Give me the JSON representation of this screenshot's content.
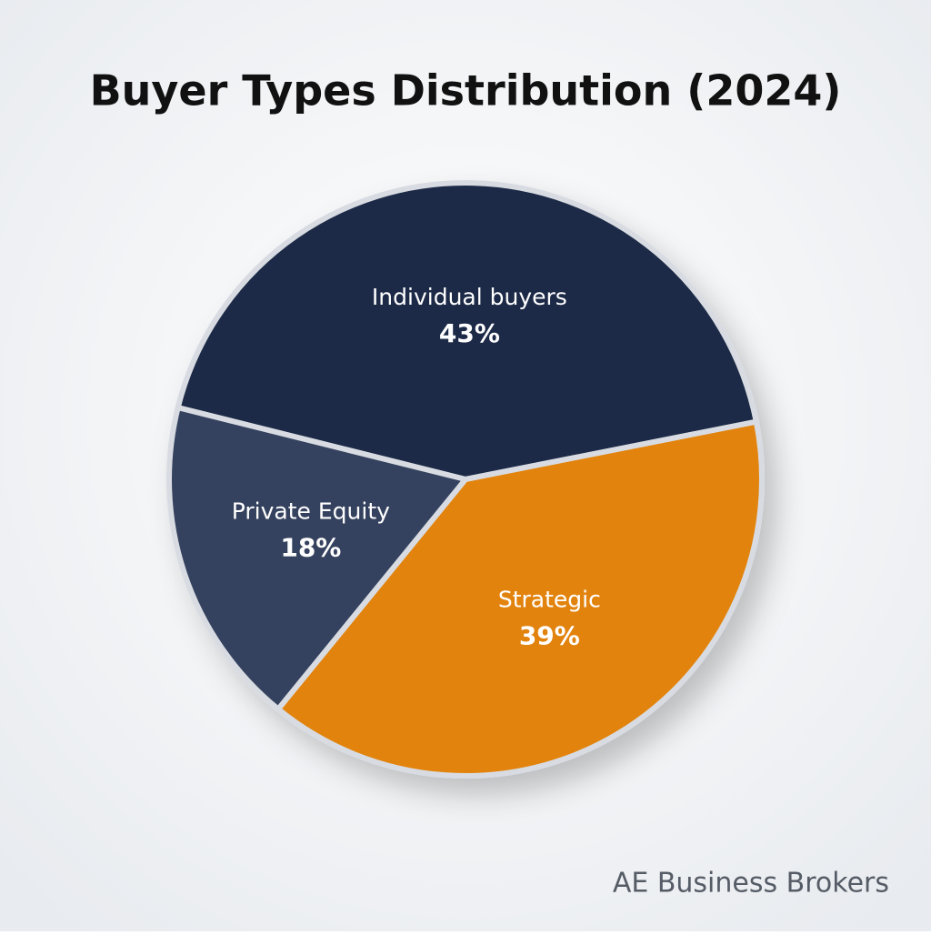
{
  "chart_data": {
    "type": "pie",
    "title": "Buyer Types Distribution (2024)",
    "categories": [
      "Individual buyers",
      "Strategic",
      "Private Equity"
    ],
    "values": [
      43,
      39,
      18
    ],
    "value_labels": [
      "43%",
      "39%",
      "18%"
    ],
    "colors": [
      "#1d2b46",
      "#e2830c",
      "#34425f"
    ],
    "watermark": "AE Business Brokers"
  }
}
